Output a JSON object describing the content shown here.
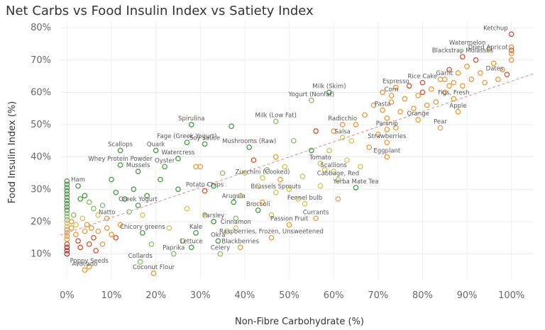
{
  "chart_data": {
    "type": "scatter",
    "title": "Net Carbs vs Food Insulin Index vs Satiety Index",
    "xlabel": "Non-Fibre Carbohydrate (%)",
    "ylabel": "Food Insulin Index (%)",
    "xlim": [
      -1.5,
      105
    ],
    "ylim": [
      2,
      82
    ],
    "x_ticks": [
      0,
      10,
      20,
      30,
      40,
      50,
      60,
      70,
      80,
      90,
      100
    ],
    "y_ticks": [
      10,
      20,
      30,
      40,
      50,
      60,
      70,
      80
    ],
    "x_tick_labels": [
      "0%",
      "10%",
      "20%",
      "30%",
      "40%",
      "50%",
      "60%",
      "70%",
      "80%",
      "90%",
      "100%"
    ],
    "y_tick_labels": [
      "10%",
      "20%",
      "30%",
      "40%",
      "50%",
      "60%",
      "70%",
      "80%"
    ],
    "grid": true,
    "trendline": {
      "x": [
        -1.5,
        105
      ],
      "y": [
        15.8,
        65.8
      ],
      "color": "#e88a8a"
    },
    "colors": {
      "green": "#4a9b47",
      "lightgreen": "#8bbd6a",
      "yellow": "#d6c35a",
      "orange": "#ee9a3a",
      "red": "#d9502e",
      "darkred": "#c0302a"
    },
    "labeled_points": [
      {
        "name": "Ketchup",
        "x": 100,
        "y": 78,
        "c": "red"
      },
      {
        "name": "Watermelon",
        "x": 95,
        "y": 73.5,
        "c": "orange"
      },
      {
        "name": "Blackstrap Molasses",
        "x": 89,
        "y": 71,
        "c": "red"
      },
      {
        "name": "Dried Apricot",
        "x": 100,
        "y": 72,
        "c": "orange"
      },
      {
        "name": "Garlic",
        "x": 85,
        "y": 64,
        "c": "orange"
      },
      {
        "name": "Rice Cake",
        "x": 80,
        "y": 63,
        "c": "red"
      },
      {
        "name": "Dates",
        "x": 99,
        "y": 65.5,
        "c": "red"
      },
      {
        "name": "Espresso",
        "x": 74,
        "y": 61.5,
        "c": "orange"
      },
      {
        "name": "Milk (Skim)",
        "x": 59,
        "y": 60,
        "c": "green"
      },
      {
        "name": "Corn",
        "x": 73,
        "y": 59,
        "c": "orange"
      },
      {
        "name": "Figs, Fresh",
        "x": 87,
        "y": 58,
        "c": "orange"
      },
      {
        "name": "Yogurt (Nonfat)",
        "x": 55,
        "y": 57.5,
        "c": "lightgreen"
      },
      {
        "name": "Pasta",
        "x": 71,
        "y": 54.5,
        "c": "orange"
      },
      {
        "name": "Orange",
        "x": 79,
        "y": 51.5,
        "c": "orange"
      },
      {
        "name": "Apple",
        "x": 88,
        "y": 54,
        "c": "orange"
      },
      {
        "name": "Spirulina",
        "x": 28,
        "y": 50,
        "c": "green"
      },
      {
        "name": "Radicchio",
        "x": 62,
        "y": 50,
        "c": "orange"
      },
      {
        "name": "Milk (Low Fat)",
        "x": 47,
        "y": 51,
        "c": "lightgreen"
      },
      {
        "name": "Pear",
        "x": 84,
        "y": 49,
        "c": "orange"
      },
      {
        "name": "Parsnip",
        "x": 72,
        "y": 48.5,
        "c": "orange"
      },
      {
        "name": "Salsa",
        "x": 62,
        "y": 46,
        "c": "yellow"
      },
      {
        "name": "Fage (Greek Yogurt)",
        "x": 27,
        "y": 44.5,
        "c": "green"
      },
      {
        "name": "Strawberries",
        "x": 72,
        "y": 44.5,
        "c": "orange"
      },
      {
        "name": "Soy sauce",
        "x": 31,
        "y": 44,
        "c": "green"
      },
      {
        "name": "Scallops",
        "x": 12,
        "y": 42,
        "c": "green"
      },
      {
        "name": "Quark",
        "x": 20,
        "y": 42,
        "c": "green"
      },
      {
        "name": "Mushrooms (Raw)",
        "x": 41,
        "y": 43,
        "c": "green"
      },
      {
        "name": "Watercress",
        "x": 25,
        "y": 39.5,
        "c": "green"
      },
      {
        "name": "Eggplant",
        "x": 72,
        "y": 40,
        "c": "orange"
      },
      {
        "name": "Whey Protein Powder",
        "x": 12,
        "y": 37.5,
        "c": "green"
      },
      {
        "name": "Tomato",
        "x": 57,
        "y": 38,
        "c": "yellow"
      },
      {
        "name": "Oyster",
        "x": 22,
        "y": 37,
        "c": "green"
      },
      {
        "name": "Scallions",
        "x": 60,
        "y": 35.5,
        "c": "yellow"
      },
      {
        "name": "Mussels",
        "x": 16,
        "y": 35.5,
        "c": "green"
      },
      {
        "name": "Zucchini (Cooked)",
        "x": 44,
        "y": 33.5,
        "c": "yellow"
      },
      {
        "name": "Cabbage, Red",
        "x": 61,
        "y": 33,
        "c": "yellow"
      },
      {
        "name": "Ham",
        "x": 2.5,
        "y": 31,
        "c": "green"
      },
      {
        "name": "Yerba Mate Tea",
        "x": 65,
        "y": 30.5,
        "c": "green"
      },
      {
        "name": "Potato Chips",
        "x": 31,
        "y": 29.5,
        "c": "red"
      },
      {
        "name": "Brussels Sprouts",
        "x": 47,
        "y": 29,
        "c": "yellow"
      },
      {
        "name": "Fennel bulb",
        "x": 53.5,
        "y": 25.5,
        "c": "yellow"
      },
      {
        "name": "Greek Yogurt",
        "x": 16,
        "y": 25,
        "c": "green"
      },
      {
        "name": "Arugula",
        "x": 37.5,
        "y": 26,
        "c": "green"
      },
      {
        "name": "Broccoli",
        "x": 43,
        "y": 23.5,
        "c": "green"
      },
      {
        "name": "Natto",
        "x": 9,
        "y": 21,
        "c": "orange"
      },
      {
        "name": "Currants",
        "x": 56,
        "y": 21,
        "c": "orange"
      },
      {
        "name": "Parsley",
        "x": 33,
        "y": 20,
        "c": "green"
      },
      {
        "name": "Passion Fruit",
        "x": 50,
        "y": 19,
        "c": "orange"
      },
      {
        "name": "Cinnamon",
        "x": 38,
        "y": 18,
        "c": "yellow"
      },
      {
        "name": "Chicory greens",
        "x": 17,
        "y": 16.5,
        "c": "green"
      },
      {
        "name": "Kale",
        "x": 29,
        "y": 16.5,
        "c": "green"
      },
      {
        "name": "Okra",
        "x": 34,
        "y": 14,
        "c": "green"
      },
      {
        "name": "Raspberries, Frozen, Unsweetened",
        "x": 46,
        "y": 15,
        "c": "orange"
      },
      {
        "name": "Blackberries",
        "x": 39,
        "y": 12,
        "c": "orange"
      },
      {
        "name": "Lettuce",
        "x": 28,
        "y": 12,
        "c": "green"
      },
      {
        "name": "Paprika",
        "x": 24,
        "y": 10,
        "c": "lightgreen"
      },
      {
        "name": "Celery",
        "x": 34.5,
        "y": 10,
        "c": "lightgreen"
      },
      {
        "name": "Poppy Seeds",
        "x": 5,
        "y": 6,
        "c": "orange"
      },
      {
        "name": "Collards",
        "x": 16.5,
        "y": 7.5,
        "c": "lightgreen"
      },
      {
        "name": "Avocado",
        "x": 4,
        "y": 5,
        "c": "orange"
      },
      {
        "name": "Coconut Flour",
        "x": 19.5,
        "y": 4,
        "c": "orange"
      }
    ],
    "other_points": [
      {
        "x": 0,
        "y": 32.5,
        "c": "green"
      },
      {
        "x": 0,
        "y": 31.5,
        "c": "green"
      },
      {
        "x": 0,
        "y": 30.5,
        "c": "green"
      },
      {
        "x": 0,
        "y": 29.5,
        "c": "green"
      },
      {
        "x": 0,
        "y": 28.5,
        "c": "green"
      },
      {
        "x": 0,
        "y": 27.5,
        "c": "green"
      },
      {
        "x": 0,
        "y": 26.5,
        "c": "green"
      },
      {
        "x": 0,
        "y": 25.5,
        "c": "green"
      },
      {
        "x": 0,
        "y": 24.5,
        "c": "green"
      },
      {
        "x": 0,
        "y": 23.5,
        "c": "green"
      },
      {
        "x": 0,
        "y": 22.5,
        "c": "lightgreen"
      },
      {
        "x": 0,
        "y": 21.5,
        "c": "lightgreen"
      },
      {
        "x": 0,
        "y": 20.5,
        "c": "lightgreen"
      },
      {
        "x": 0,
        "y": 19.5,
        "c": "yellow"
      },
      {
        "x": 0,
        "y": 18.5,
        "c": "yellow"
      },
      {
        "x": 0,
        "y": 17.5,
        "c": "orange"
      },
      {
        "x": 0,
        "y": 16.5,
        "c": "orange"
      },
      {
        "x": 0,
        "y": 15.5,
        "c": "orange"
      },
      {
        "x": 0,
        "y": 14.5,
        "c": "orange"
      },
      {
        "x": 0,
        "y": 13,
        "c": "red"
      },
      {
        "x": 0,
        "y": 12,
        "c": "darkred"
      },
      {
        "x": 0,
        "y": 11,
        "c": "darkred"
      },
      {
        "x": 0,
        "y": 10,
        "c": "darkred"
      },
      {
        "x": 1,
        "y": 20,
        "c": "orange"
      },
      {
        "x": 1,
        "y": 18,
        "c": "orange"
      },
      {
        "x": 1.5,
        "y": 22,
        "c": "lightgreen"
      },
      {
        "x": 2,
        "y": 19,
        "c": "yellow"
      },
      {
        "x": 2,
        "y": 16,
        "c": "orange"
      },
      {
        "x": 2.5,
        "y": 14,
        "c": "red"
      },
      {
        "x": 3,
        "y": 12,
        "c": "red"
      },
      {
        "x": 3,
        "y": 27,
        "c": "green"
      },
      {
        "x": 3.5,
        "y": 21,
        "c": "yellow"
      },
      {
        "x": 4,
        "y": 28,
        "c": "green"
      },
      {
        "x": 4,
        "y": 17,
        "c": "orange"
      },
      {
        "x": 4.5,
        "y": 19,
        "c": "orange"
      },
      {
        "x": 5,
        "y": 13,
        "c": "red"
      },
      {
        "x": 5,
        "y": 26,
        "c": "lightgreen"
      },
      {
        "x": 5.5,
        "y": 18,
        "c": "orange"
      },
      {
        "x": 6,
        "y": 24,
        "c": "lightgreen"
      },
      {
        "x": 6,
        "y": 15,
        "c": "red"
      },
      {
        "x": 6.5,
        "y": 11,
        "c": "red"
      },
      {
        "x": 7,
        "y": 22,
        "c": "yellow"
      },
      {
        "x": 7,
        "y": 17,
        "c": "orange"
      },
      {
        "x": 8,
        "y": 13,
        "c": "orange"
      },
      {
        "x": 8,
        "y": 25,
        "c": "lightgreen"
      },
      {
        "x": 9,
        "y": 18,
        "c": "orange"
      },
      {
        "x": 10,
        "y": 33,
        "c": "green"
      },
      {
        "x": 10,
        "y": 16,
        "c": "orange"
      },
      {
        "x": 11,
        "y": 29,
        "c": "green"
      },
      {
        "x": 11,
        "y": 15,
        "c": "red"
      },
      {
        "x": 12,
        "y": 19,
        "c": "orange"
      },
      {
        "x": 13,
        "y": 27,
        "c": "green"
      },
      {
        "x": 14,
        "y": 23,
        "c": "lightgreen"
      },
      {
        "x": 15,
        "y": 30,
        "c": "green"
      },
      {
        "x": 17,
        "y": 22,
        "c": "yellow"
      },
      {
        "x": 18,
        "y": 28,
        "c": "green"
      },
      {
        "x": 19,
        "y": 13,
        "c": "lightgreen"
      },
      {
        "x": 21,
        "y": 33,
        "c": "green"
      },
      {
        "x": 23,
        "y": 18,
        "c": "yellow"
      },
      {
        "x": 25,
        "y": 30,
        "c": "green"
      },
      {
        "x": 26,
        "y": 14,
        "c": "lightgreen"
      },
      {
        "x": 27,
        "y": 24,
        "c": "yellow"
      },
      {
        "x": 29,
        "y": 37,
        "c": "orange"
      },
      {
        "x": 30,
        "y": 37,
        "c": "orange"
      },
      {
        "x": 31,
        "y": 22,
        "c": "yellow"
      },
      {
        "x": 33,
        "y": 31,
        "c": "green"
      },
      {
        "x": 35,
        "y": 35,
        "c": "lightgreen"
      },
      {
        "x": 36,
        "y": 17,
        "c": "yellow"
      },
      {
        "x": 37,
        "y": 49.5,
        "c": "green"
      },
      {
        "x": 38,
        "y": 21,
        "c": "lightgreen"
      },
      {
        "x": 39,
        "y": 28,
        "c": "yellow"
      },
      {
        "x": 40,
        "y": 35,
        "c": "yellow"
      },
      {
        "x": 42,
        "y": 39,
        "c": "red"
      },
      {
        "x": 43,
        "y": 31,
        "c": "yellow"
      },
      {
        "x": 44,
        "y": 26,
        "c": "orange"
      },
      {
        "x": 45,
        "y": 36,
        "c": "lightgreen"
      },
      {
        "x": 46,
        "y": 22,
        "c": "yellow"
      },
      {
        "x": 47,
        "y": 40,
        "c": "orange"
      },
      {
        "x": 48,
        "y": 33,
        "c": "orange"
      },
      {
        "x": 49,
        "y": 37,
        "c": "yellow"
      },
      {
        "x": 50,
        "y": 30,
        "c": "yellow"
      },
      {
        "x": 51,
        "y": 45,
        "c": "lightgreen"
      },
      {
        "x": 52,
        "y": 27,
        "c": "yellow"
      },
      {
        "x": 53,
        "y": 34,
        "c": "yellow"
      },
      {
        "x": 55,
        "y": 42,
        "c": "green"
      },
      {
        "x": 56,
        "y": 48,
        "c": "red"
      },
      {
        "x": 57,
        "y": 31,
        "c": "yellow"
      },
      {
        "x": 58,
        "y": 36,
        "c": "yellow"
      },
      {
        "x": 59,
        "y": 42,
        "c": "yellow"
      },
      {
        "x": 60,
        "y": 48,
        "c": "orange"
      },
      {
        "x": 61,
        "y": 27,
        "c": "orange"
      },
      {
        "x": 63,
        "y": 39,
        "c": "yellow"
      },
      {
        "x": 64,
        "y": 45,
        "c": "yellow"
      },
      {
        "x": 65,
        "y": 50,
        "c": "orange"
      },
      {
        "x": 66,
        "y": 37,
        "c": "yellow"
      },
      {
        "x": 67,
        "y": 53,
        "c": "orange"
      },
      {
        "x": 68,
        "y": 43,
        "c": "orange"
      },
      {
        "x": 69,
        "y": 56,
        "c": "orange"
      },
      {
        "x": 70,
        "y": 47,
        "c": "orange"
      },
      {
        "x": 71,
        "y": 60,
        "c": "orange"
      },
      {
        "x": 72,
        "y": 52,
        "c": "orange"
      },
      {
        "x": 73,
        "y": 57,
        "c": "orange"
      },
      {
        "x": 74,
        "y": 49,
        "c": "orange"
      },
      {
        "x": 75,
        "y": 54,
        "c": "orange"
      },
      {
        "x": 76,
        "y": 58,
        "c": "orange"
      },
      {
        "x": 77,
        "y": 62,
        "c": "red"
      },
      {
        "x": 78,
        "y": 55,
        "c": "orange"
      },
      {
        "x": 79,
        "y": 59,
        "c": "orange"
      },
      {
        "x": 80,
        "y": 60,
        "c": "red"
      },
      {
        "x": 81,
        "y": 56,
        "c": "orange"
      },
      {
        "x": 82,
        "y": 61,
        "c": "orange"
      },
      {
        "x": 83,
        "y": 57,
        "c": "orange"
      },
      {
        "x": 84,
        "y": 64,
        "c": "orange"
      },
      {
        "x": 85,
        "y": 60,
        "c": "orange"
      },
      {
        "x": 86,
        "y": 67,
        "c": "red"
      },
      {
        "x": 86,
        "y": 62,
        "c": "orange"
      },
      {
        "x": 87,
        "y": 63,
        "c": "orange"
      },
      {
        "x": 88,
        "y": 66,
        "c": "orange"
      },
      {
        "x": 89,
        "y": 62,
        "c": "orange"
      },
      {
        "x": 90,
        "y": 68,
        "c": "orange"
      },
      {
        "x": 91,
        "y": 64,
        "c": "orange"
      },
      {
        "x": 92,
        "y": 70,
        "c": "red"
      },
      {
        "x": 93,
        "y": 66,
        "c": "orange"
      },
      {
        "x": 94,
        "y": 63,
        "c": "orange"
      },
      {
        "x": 96,
        "y": 69,
        "c": "orange"
      },
      {
        "x": 97,
        "y": 64,
        "c": "orange"
      },
      {
        "x": 98,
        "y": 67,
        "c": "orange"
      },
      {
        "x": 100,
        "y": 74,
        "c": "orange"
      },
      {
        "x": 100,
        "y": 73,
        "c": "red"
      },
      {
        "x": 100,
        "y": 70,
        "c": "orange"
      }
    ]
  }
}
